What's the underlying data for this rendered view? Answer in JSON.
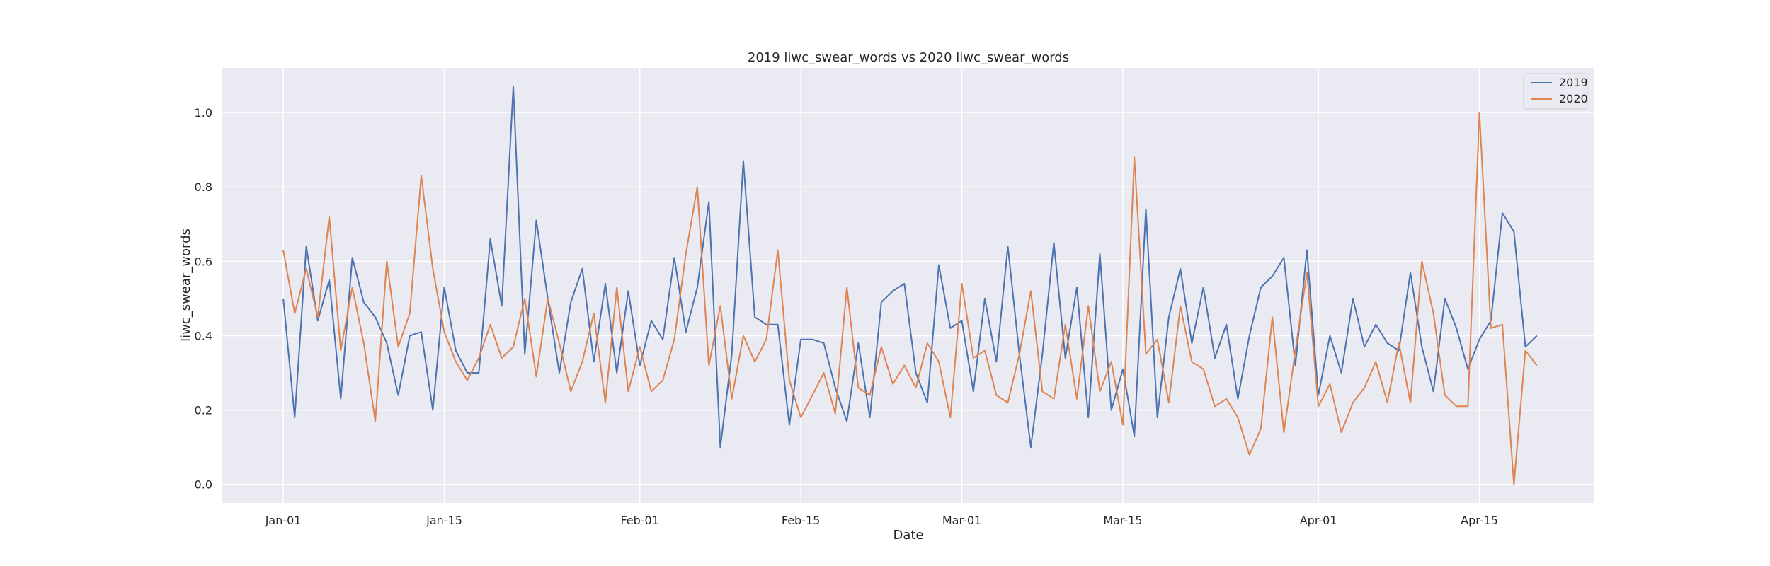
{
  "chart_data": {
    "type": "line",
    "title": "2019 liwc_swear_words vs 2020 liwc_swear_words",
    "xlabel": "Date",
    "ylabel": "liwc_swear_words",
    "x_ticks": [
      "Jan-01",
      "Jan-15",
      "Feb-01",
      "Feb-15",
      "Mar-01",
      "Mar-15",
      "Apr-01",
      "Apr-15"
    ],
    "x_tick_days": [
      0,
      14,
      31,
      45,
      59,
      73,
      90,
      104
    ],
    "yticks": [
      "0.0",
      "0.2",
      "0.4",
      "0.6",
      "0.8",
      "1.0"
    ],
    "ytick_values": [
      0.0,
      0.2,
      0.4,
      0.6,
      0.8,
      1.0
    ],
    "ylim": [
      -0.05,
      1.12
    ],
    "xlim_days": [
      -5.3,
      114
    ],
    "grid": true,
    "legend_position": "top-right",
    "series": [
      {
        "name": "2019",
        "color": "#4c72b0",
        "values": [
          0.5,
          0.18,
          0.64,
          0.44,
          0.55,
          0.23,
          0.61,
          0.49,
          0.45,
          0.38,
          0.24,
          0.4,
          0.41,
          0.2,
          0.53,
          0.36,
          0.3,
          0.3,
          0.66,
          0.48,
          1.07,
          0.35,
          0.71,
          0.5,
          0.3,
          0.49,
          0.58,
          0.33,
          0.54,
          0.3,
          0.52,
          0.32,
          0.44,
          0.39,
          0.61,
          0.41,
          0.53,
          0.76,
          0.1,
          0.35,
          0.87,
          0.45,
          0.43,
          0.43,
          0.16,
          0.39,
          0.39,
          0.38,
          0.26,
          0.17,
          0.38,
          0.18,
          0.49,
          0.52,
          0.54,
          0.3,
          0.22,
          0.59,
          0.42,
          0.44,
          0.25,
          0.5,
          0.33,
          0.64,
          0.35,
          0.1,
          0.35,
          0.65,
          0.34,
          0.53,
          0.18,
          0.62,
          0.2,
          0.31,
          0.13,
          0.74,
          0.18,
          0.45,
          0.58,
          0.38,
          0.53,
          0.34,
          0.43,
          0.23,
          0.4,
          0.53,
          0.56,
          0.61,
          0.32,
          0.63,
          0.24,
          0.4,
          0.3,
          0.5,
          0.37,
          0.43,
          0.38,
          0.36,
          0.57,
          0.37,
          0.25,
          0.5,
          0.42,
          0.31,
          0.39,
          0.44,
          0.73,
          0.68,
          0.37,
          0.4
        ]
      },
      {
        "name": "2020",
        "color": "#dd8452",
        "values": [
          0.63,
          0.46,
          0.58,
          0.45,
          0.72,
          0.36,
          0.53,
          0.38,
          0.17,
          0.6,
          0.37,
          0.46,
          0.83,
          0.58,
          0.41,
          0.33,
          0.28,
          0.34,
          0.43,
          0.34,
          0.37,
          0.5,
          0.29,
          0.5,
          0.38,
          0.25,
          0.33,
          0.46,
          0.22,
          0.53,
          0.25,
          0.37,
          0.25,
          0.28,
          0.39,
          0.62,
          0.8,
          0.32,
          0.48,
          0.23,
          0.4,
          0.33,
          0.39,
          0.63,
          0.28,
          0.18,
          0.24,
          0.3,
          0.19,
          0.53,
          0.26,
          0.24,
          0.37,
          0.27,
          0.32,
          0.26,
          0.38,
          0.33,
          0.18,
          0.54,
          0.34,
          0.36,
          0.24,
          0.22,
          0.35,
          0.52,
          0.25,
          0.23,
          0.43,
          0.23,
          0.48,
          0.25,
          0.33,
          0.16,
          0.88,
          0.35,
          0.39,
          0.22,
          0.48,
          0.33,
          0.31,
          0.21,
          0.23,
          0.18,
          0.08,
          0.15,
          0.45,
          0.14,
          0.36,
          0.57,
          0.21,
          0.27,
          0.14,
          0.22,
          0.26,
          0.33,
          0.22,
          0.38,
          0.22,
          0.6,
          0.46,
          0.24,
          0.21,
          0.21,
          1.0,
          0.42,
          0.43,
          0.0,
          0.36,
          0.32
        ]
      }
    ]
  }
}
